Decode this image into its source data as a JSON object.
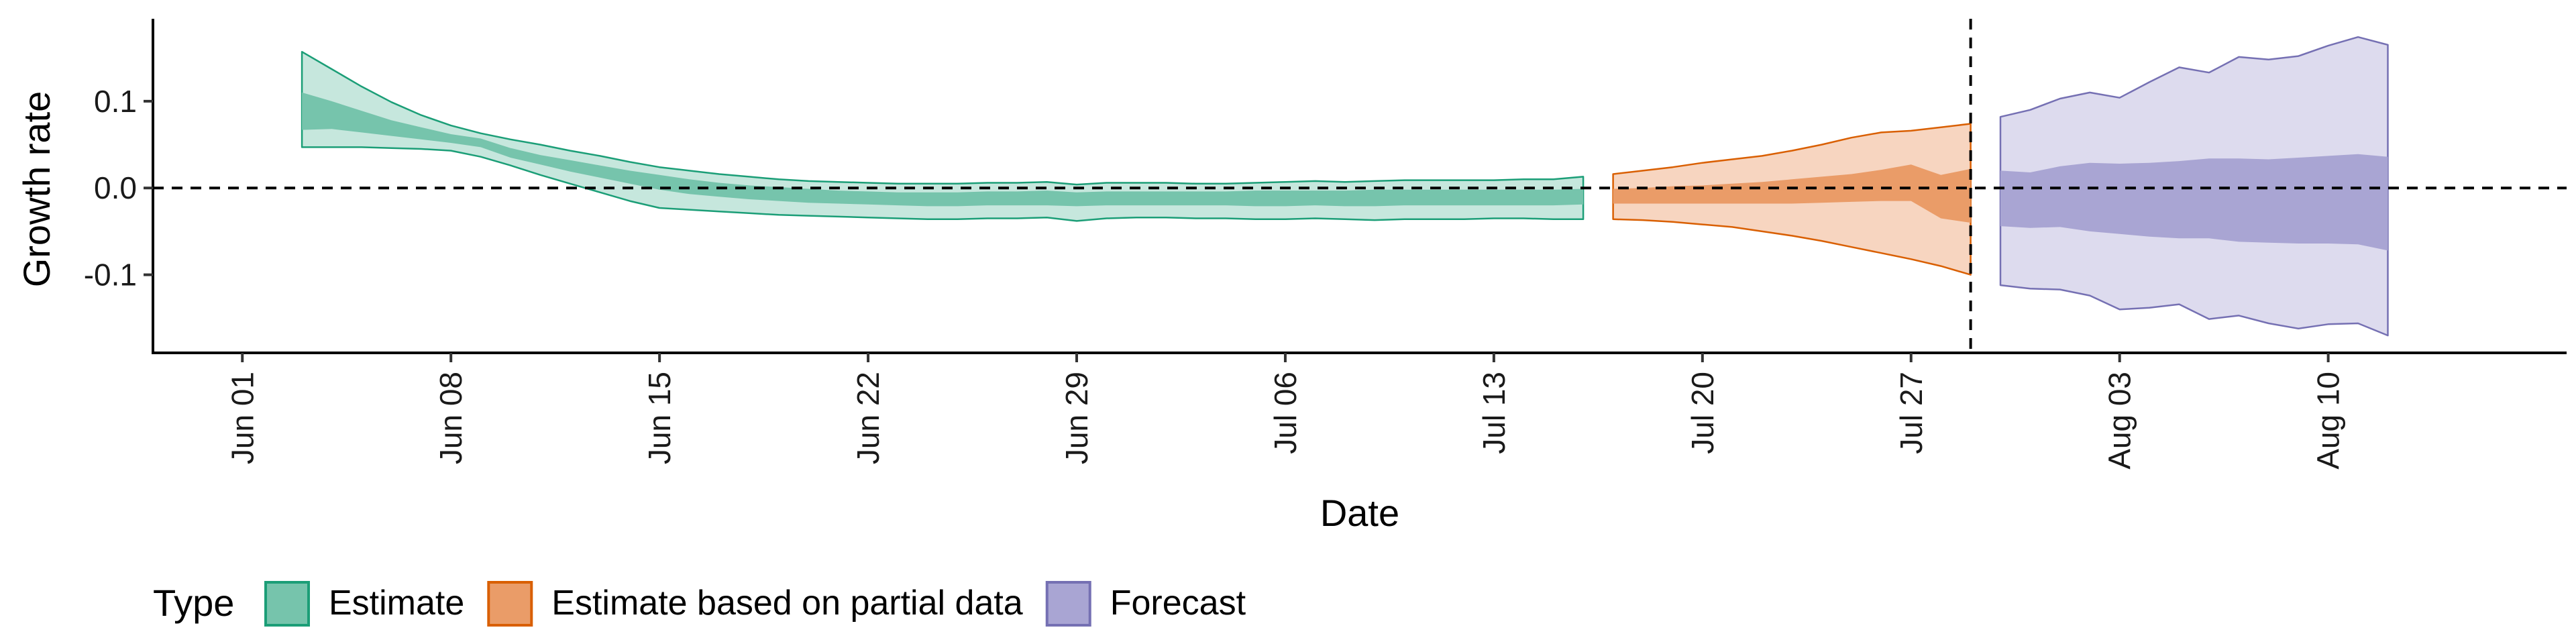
{
  "chart_data": {
    "type": "area",
    "xlabel": "Date",
    "ylabel": "Growth rate",
    "ylim": [
      -0.19,
      0.195
    ],
    "xlim": [
      "2020-05-29",
      "2020-08-18"
    ],
    "x_ticks": [
      {
        "date": "2020-06-01",
        "label": "Jun 01"
      },
      {
        "date": "2020-06-08",
        "label": "Jun 08"
      },
      {
        "date": "2020-06-15",
        "label": "Jun 15"
      },
      {
        "date": "2020-06-22",
        "label": "Jun 22"
      },
      {
        "date": "2020-06-29",
        "label": "Jun 29"
      },
      {
        "date": "2020-07-06",
        "label": "Jul 06"
      },
      {
        "date": "2020-07-13",
        "label": "Jul 13"
      },
      {
        "date": "2020-07-20",
        "label": "Jul 20"
      },
      {
        "date": "2020-07-27",
        "label": "Jul 27"
      },
      {
        "date": "2020-08-03",
        "label": "Aug 03"
      },
      {
        "date": "2020-08-10",
        "label": "Aug 10"
      }
    ],
    "y_ticks": [
      {
        "value": 0.1,
        "label": "0.1"
      },
      {
        "value": 0.0,
        "label": "0.0"
      },
      {
        "value": -0.1,
        "label": "-0.1"
      }
    ],
    "hline": {
      "value": 0.0,
      "style": "dashed"
    },
    "vline": {
      "date": "2020-07-29",
      "style": "dashed"
    },
    "legend": {
      "position": "bottom",
      "title": "Type",
      "items": [
        {
          "label": "Estimate",
          "color": "#1b9e77"
        },
        {
          "label": "Estimate based on partial data",
          "color": "#d95f02"
        },
        {
          "label": "Forecast",
          "color": "#7570b3"
        }
      ]
    },
    "series": [
      {
        "name": "Estimate",
        "color": "#1b9e77",
        "fill_outer": "#c6e7dd",
        "fill_inner": "#76c4ac",
        "x": [
          "2020-06-03",
          "2020-06-04",
          "2020-06-05",
          "2020-06-06",
          "2020-06-07",
          "2020-06-08",
          "2020-06-09",
          "2020-06-10",
          "2020-06-11",
          "2020-06-12",
          "2020-06-13",
          "2020-06-14",
          "2020-06-15",
          "2020-06-16",
          "2020-06-17",
          "2020-06-18",
          "2020-06-19",
          "2020-06-20",
          "2020-06-21",
          "2020-06-22",
          "2020-06-23",
          "2020-06-24",
          "2020-06-25",
          "2020-06-26",
          "2020-06-27",
          "2020-06-28",
          "2020-06-29",
          "2020-06-30",
          "2020-07-01",
          "2020-07-02",
          "2020-07-03",
          "2020-07-04",
          "2020-07-05",
          "2020-07-06",
          "2020-07-07",
          "2020-07-08",
          "2020-07-09",
          "2020-07-10",
          "2020-07-11",
          "2020-07-12",
          "2020-07-13",
          "2020-07-14",
          "2020-07-15",
          "2020-07-16"
        ],
        "upper90": [
          0.157,
          0.137,
          0.117,
          0.099,
          0.084,
          0.072,
          0.063,
          0.056,
          0.05,
          0.043,
          0.037,
          0.03,
          0.024,
          0.02,
          0.016,
          0.013,
          0.01,
          0.008,
          0.007,
          0.006,
          0.005,
          0.005,
          0.005,
          0.006,
          0.006,
          0.007,
          0.004,
          0.006,
          0.006,
          0.006,
          0.005,
          0.005,
          0.006,
          0.007,
          0.008,
          0.007,
          0.008,
          0.009,
          0.009,
          0.009,
          0.009,
          0.01,
          0.01,
          0.013
        ],
        "upper50": [
          0.11,
          0.1,
          0.089,
          0.078,
          0.07,
          0.062,
          0.057,
          0.046,
          0.038,
          0.032,
          0.026,
          0.02,
          0.015,
          0.01,
          0.006,
          0.003,
          0.001,
          -0.001,
          -0.003,
          -0.004,
          -0.005,
          -0.005,
          -0.005,
          -0.004,
          -0.004,
          -0.003,
          -0.005,
          -0.004,
          -0.004,
          -0.004,
          -0.004,
          -0.004,
          -0.003,
          -0.003,
          -0.003,
          -0.003,
          -0.002,
          -0.002,
          -0.002,
          -0.002,
          -0.002,
          -0.002,
          -0.002,
          -0.001
        ],
        "lower50": [
          0.067,
          0.068,
          0.064,
          0.06,
          0.056,
          0.052,
          0.047,
          0.035,
          0.027,
          0.019,
          0.012,
          0.005,
          -0.002,
          -0.007,
          -0.01,
          -0.013,
          -0.015,
          -0.017,
          -0.018,
          -0.019,
          -0.02,
          -0.021,
          -0.021,
          -0.02,
          -0.02,
          -0.02,
          -0.021,
          -0.02,
          -0.02,
          -0.02,
          -0.02,
          -0.02,
          -0.021,
          -0.021,
          -0.02,
          -0.021,
          -0.021,
          -0.02,
          -0.02,
          -0.02,
          -0.02,
          -0.02,
          -0.02,
          -0.019
        ],
        "lower90": [
          0.047,
          0.047,
          0.047,
          0.046,
          0.045,
          0.043,
          0.036,
          0.026,
          0.015,
          0.005,
          -0.005,
          -0.015,
          -0.023,
          -0.025,
          -0.027,
          -0.029,
          -0.031,
          -0.032,
          -0.033,
          -0.034,
          -0.035,
          -0.036,
          -0.036,
          -0.035,
          -0.035,
          -0.034,
          -0.038,
          -0.035,
          -0.034,
          -0.034,
          -0.035,
          -0.035,
          -0.036,
          -0.036,
          -0.035,
          -0.036,
          -0.037,
          -0.036,
          -0.036,
          -0.036,
          -0.035,
          -0.035,
          -0.036,
          -0.036
        ]
      },
      {
        "name": "Estimate based on partial data",
        "color": "#d95f02",
        "fill_outer": "#f7d5c0",
        "fill_inner": "#ea9c68",
        "x": [
          "2020-07-17",
          "2020-07-18",
          "2020-07-19",
          "2020-07-20",
          "2020-07-21",
          "2020-07-22",
          "2020-07-23",
          "2020-07-24",
          "2020-07-25",
          "2020-07-26",
          "2020-07-27",
          "2020-07-28",
          "2020-07-29"
        ],
        "upper90": [
          0.016,
          0.02,
          0.024,
          0.029,
          0.033,
          0.037,
          0.043,
          0.05,
          0.058,
          0.064,
          0.066,
          0.07,
          0.074
        ],
        "upper50": [
          -0.001,
          0.0,
          0.002,
          0.003,
          0.005,
          0.007,
          0.01,
          0.013,
          0.016,
          0.021,
          0.027,
          0.015,
          0.022
        ],
        "lower50": [
          -0.018,
          -0.018,
          -0.018,
          -0.018,
          -0.018,
          -0.018,
          -0.018,
          -0.017,
          -0.016,
          -0.015,
          -0.015,
          -0.035,
          -0.04
        ],
        "lower90": [
          -0.036,
          -0.037,
          -0.039,
          -0.042,
          -0.045,
          -0.05,
          -0.055,
          -0.061,
          -0.068,
          -0.075,
          -0.082,
          -0.09,
          -0.1
        ]
      },
      {
        "name": "Forecast",
        "color": "#7570b3",
        "fill_outer": "#dddbee",
        "fill_inner": "#a9a5d3",
        "x": [
          "2020-07-30",
          "2020-07-31",
          "2020-08-01",
          "2020-08-02",
          "2020-08-03",
          "2020-08-04",
          "2020-08-05",
          "2020-08-06",
          "2020-08-07",
          "2020-08-08",
          "2020-08-09",
          "2020-08-10",
          "2020-08-11",
          "2020-08-12"
        ],
        "upper90": [
          0.082,
          0.09,
          0.103,
          0.11,
          0.104,
          0.122,
          0.139,
          0.133,
          0.151,
          0.148,
          0.152,
          0.164,
          0.174,
          0.165
        ],
        "upper50": [
          0.02,
          0.018,
          0.025,
          0.029,
          0.028,
          0.029,
          0.031,
          0.034,
          0.034,
          0.033,
          0.035,
          0.037,
          0.039,
          0.036
        ],
        "lower50": [
          -0.044,
          -0.046,
          -0.045,
          -0.05,
          -0.053,
          -0.056,
          -0.058,
          -0.058,
          -0.062,
          -0.063,
          -0.064,
          -0.064,
          -0.065,
          -0.072
        ],
        "lower90": [
          -0.112,
          -0.116,
          -0.117,
          -0.124,
          -0.14,
          -0.138,
          -0.134,
          -0.151,
          -0.147,
          -0.156,
          -0.162,
          -0.157,
          -0.156,
          -0.17
        ]
      }
    ]
  }
}
